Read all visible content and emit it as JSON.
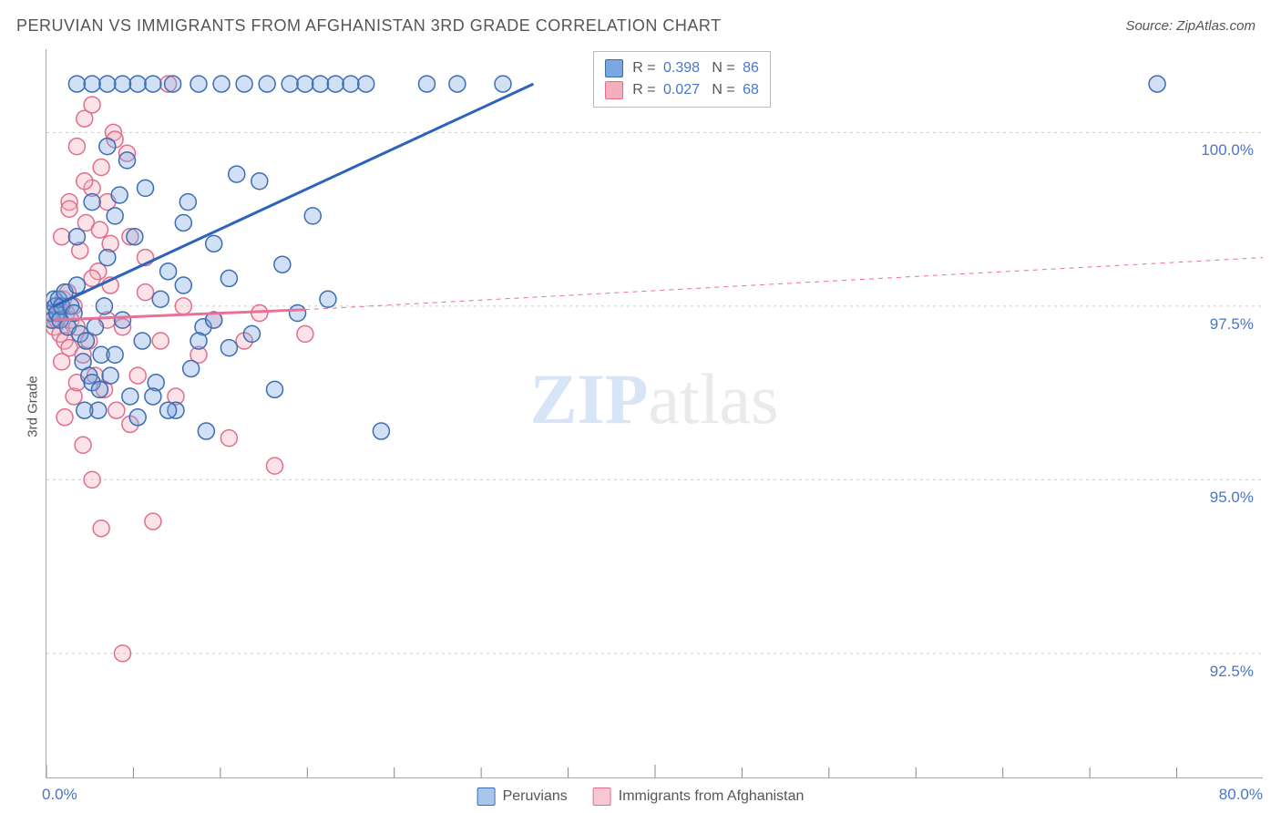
{
  "title": "PERUVIAN VS IMMIGRANTS FROM AFGHANISTAN 3RD GRADE CORRELATION CHART",
  "source": "Source: ZipAtlas.com",
  "ylabel": "3rd Grade",
  "watermark": {
    "zip": "ZIP",
    "atlas": "atlas"
  },
  "chart": {
    "type": "scatter",
    "xlim": [
      0,
      80
    ],
    "ylim": [
      90.7,
      101.2
    ],
    "background_color": "#ffffff",
    "grid_color": "#cccccc",
    "axis_color": "#aaaaaa",
    "x_ticks": [
      0,
      40,
      80
    ],
    "x_tick_labels": [
      "0.0%",
      "",
      "80.0%"
    ],
    "y_ticks": [
      92.5,
      95.0,
      97.5,
      100.0
    ],
    "y_tick_labels": [
      "92.5%",
      "95.0%",
      "97.5%",
      "100.0%"
    ],
    "marker_radius": 9,
    "marker_stroke_width": 1.5,
    "marker_fill_opacity": 0.35,
    "tick_color": "#888888",
    "series": [
      {
        "name": "Peruvians",
        "color_fill": "#7ba7e0",
        "color_stroke": "#3b6db3",
        "line_color": "#2e63bd",
        "line_width": 3,
        "r": "0.398",
        "n": "86",
        "regression": {
          "x1": 0.5,
          "y1": 97.5,
          "x2": 32,
          "y2": 100.7
        },
        "regression_dash": null,
        "points": [
          [
            0.3,
            97.4
          ],
          [
            0.4,
            97.3
          ],
          [
            0.5,
            97.6
          ],
          [
            0.6,
            97.5
          ],
          [
            0.7,
            97.4
          ],
          [
            0.8,
            97.6
          ],
          [
            0.9,
            97.3
          ],
          [
            1.0,
            97.5
          ],
          [
            1.2,
            97.7
          ],
          [
            1.4,
            97.2
          ],
          [
            1.6,
            97.5
          ],
          [
            1.8,
            97.4
          ],
          [
            2.0,
            97.8
          ],
          [
            2.2,
            97.1
          ],
          [
            2.4,
            96.7
          ],
          [
            2.6,
            97.0
          ],
          [
            2.8,
            96.5
          ],
          [
            3.0,
            96.4
          ],
          [
            3.2,
            97.2
          ],
          [
            3.4,
            96.0
          ],
          [
            3.6,
            96.8
          ],
          [
            3.8,
            97.5
          ],
          [
            4.0,
            98.2
          ],
          [
            4.2,
            96.5
          ],
          [
            4.5,
            98.8
          ],
          [
            4.8,
            99.1
          ],
          [
            5.0,
            97.3
          ],
          [
            5.3,
            99.6
          ],
          [
            5.5,
            96.2
          ],
          [
            5.8,
            98.5
          ],
          [
            6.0,
            100.7
          ],
          [
            6.3,
            97.0
          ],
          [
            6.5,
            99.2
          ],
          [
            7.0,
            100.7
          ],
          [
            7.2,
            96.4
          ],
          [
            7.5,
            97.6
          ],
          [
            8.0,
            98.0
          ],
          [
            8.3,
            100.7
          ],
          [
            8.5,
            96.0
          ],
          [
            9.0,
            98.7
          ],
          [
            9.3,
            99.0
          ],
          [
            9.5,
            96.6
          ],
          [
            10.0,
            100.7
          ],
          [
            10.3,
            97.2
          ],
          [
            10.5,
            95.7
          ],
          [
            11.0,
            98.4
          ],
          [
            11.5,
            100.7
          ],
          [
            12.0,
            96.9
          ],
          [
            12.5,
            99.4
          ],
          [
            13.0,
            100.7
          ],
          [
            13.5,
            97.1
          ],
          [
            14.0,
            99.3
          ],
          [
            14.5,
            100.7
          ],
          [
            15.0,
            96.3
          ],
          [
            15.5,
            98.1
          ],
          [
            16.0,
            100.7
          ],
          [
            16.5,
            97.4
          ],
          [
            17.0,
            100.7
          ],
          [
            17.5,
            98.8
          ],
          [
            18.0,
            100.7
          ],
          [
            18.5,
            97.6
          ],
          [
            19.0,
            100.7
          ],
          [
            20.0,
            100.7
          ],
          [
            21.0,
            100.7
          ],
          [
            22.0,
            95.7
          ],
          [
            25.0,
            100.7
          ],
          [
            27.0,
            100.7
          ],
          [
            30.0,
            100.7
          ],
          [
            73.0,
            100.7
          ],
          [
            2.0,
            98.5
          ],
          [
            3.0,
            99.0
          ],
          [
            4.0,
            99.8
          ],
          [
            5.0,
            100.7
          ],
          [
            2.5,
            96.0
          ],
          [
            3.5,
            96.3
          ],
          [
            4.5,
            96.8
          ],
          [
            6.0,
            95.9
          ],
          [
            7.0,
            96.2
          ],
          [
            8.0,
            96.0
          ],
          [
            9.0,
            97.8
          ],
          [
            10.0,
            97.0
          ],
          [
            11.0,
            97.3
          ],
          [
            12.0,
            97.9
          ],
          [
            4.0,
            100.7
          ],
          [
            3.0,
            100.7
          ],
          [
            2.0,
            100.7
          ]
        ]
      },
      {
        "name": "Immigrants from Afghanistan",
        "color_fill": "#f4aebe",
        "color_stroke": "#e06e8c",
        "line_color": "#e87099",
        "line_width": 3,
        "r": "0.027",
        "n": "68",
        "regression": {
          "x1": 0.5,
          "y1": 97.3,
          "x2": 17,
          "y2": 97.45
        },
        "regression_dash_ext": {
          "x1": 17,
          "y1": 97.45,
          "x2": 80,
          "y2": 98.2
        },
        "points": [
          [
            0.3,
            97.3
          ],
          [
            0.4,
            97.4
          ],
          [
            0.5,
            97.2
          ],
          [
            0.6,
            97.5
          ],
          [
            0.7,
            97.3
          ],
          [
            0.8,
            97.4
          ],
          [
            0.9,
            97.1
          ],
          [
            1.0,
            97.5
          ],
          [
            1.1,
            97.6
          ],
          [
            1.2,
            97.0
          ],
          [
            1.3,
            97.4
          ],
          [
            1.4,
            97.7
          ],
          [
            1.5,
            96.9
          ],
          [
            1.6,
            97.3
          ],
          [
            1.8,
            97.5
          ],
          [
            2.0,
            97.2
          ],
          [
            2.2,
            98.3
          ],
          [
            2.4,
            96.8
          ],
          [
            2.6,
            98.7
          ],
          [
            2.8,
            97.0
          ],
          [
            3.0,
            99.2
          ],
          [
            3.2,
            96.5
          ],
          [
            3.4,
            98.0
          ],
          [
            3.6,
            99.5
          ],
          [
            3.8,
            96.3
          ],
          [
            4.0,
            99.0
          ],
          [
            4.2,
            98.4
          ],
          [
            4.4,
            100.0
          ],
          [
            4.6,
            96.0
          ],
          [
            5.0,
            97.2
          ],
          [
            5.3,
            99.7
          ],
          [
            5.5,
            95.8
          ],
          [
            6.0,
            96.5
          ],
          [
            6.5,
            98.2
          ],
          [
            7.0,
            94.4
          ],
          [
            7.5,
            97.0
          ],
          [
            8.0,
            100.7
          ],
          [
            8.5,
            96.2
          ],
          [
            9.0,
            97.5
          ],
          [
            10.0,
            96.8
          ],
          [
            11.0,
            97.3
          ],
          [
            12.0,
            95.6
          ],
          [
            13.0,
            97.0
          ],
          [
            14.0,
            97.4
          ],
          [
            15.0,
            95.2
          ],
          [
            17.0,
            97.1
          ],
          [
            1.0,
            98.5
          ],
          [
            1.5,
            99.0
          ],
          [
            2.0,
            99.8
          ],
          [
            2.5,
            100.2
          ],
          [
            3.0,
            100.4
          ],
          [
            1.2,
            95.9
          ],
          [
            1.8,
            96.2
          ],
          [
            2.4,
            95.5
          ],
          [
            3.0,
            95.0
          ],
          [
            3.6,
            94.3
          ],
          [
            4.2,
            97.8
          ],
          [
            5.0,
            92.5
          ],
          [
            1.0,
            96.7
          ],
          [
            1.5,
            98.9
          ],
          [
            2.0,
            96.4
          ],
          [
            2.5,
            99.3
          ],
          [
            3.0,
            97.9
          ],
          [
            3.5,
            98.6
          ],
          [
            4.0,
            97.3
          ],
          [
            4.5,
            99.9
          ],
          [
            5.5,
            98.5
          ],
          [
            6.5,
            97.7
          ]
        ]
      }
    ]
  },
  "legend_box": {
    "r_label": "R =",
    "n_label": "N ="
  },
  "legend_bottom": [
    {
      "label": "Peruvians",
      "fill": "#a8c5eb",
      "stroke": "#3b6db3"
    },
    {
      "label": "Immigrants from Afghanistan",
      "fill": "#f7c7d3",
      "stroke": "#e06e8c"
    }
  ]
}
